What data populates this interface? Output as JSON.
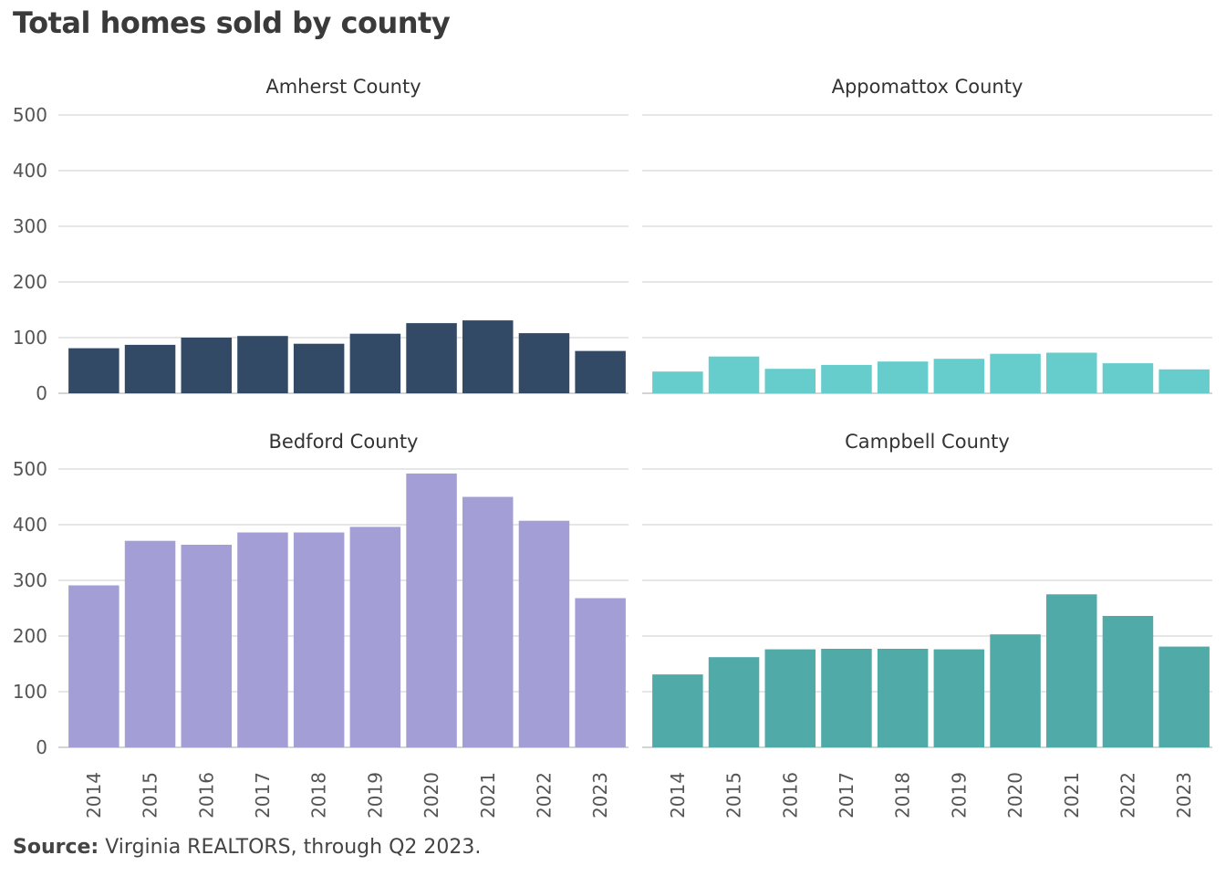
{
  "title": "Total homes sold by county",
  "source": {
    "label": "Source:",
    "text": "Virginia REALTORS,  through  Q2 2023."
  },
  "chart_data": [
    {
      "type": "bar",
      "title": "Amherst County",
      "color": "#334a66",
      "categories": [
        "2014",
        "2015",
        "2016",
        "2017",
        "2018",
        "2019",
        "2020",
        "2021",
        "2022",
        "2023"
      ],
      "values": [
        81,
        87,
        100,
        103,
        89,
        107,
        126,
        131,
        108,
        76
      ],
      "ylim": [
        0,
        500
      ],
      "yticks": [
        0,
        100,
        200,
        300,
        400,
        500
      ],
      "grid": true
    },
    {
      "type": "bar",
      "title": "Appomattox County",
      "color": "#66cccc",
      "categories": [
        "2014",
        "2015",
        "2016",
        "2017",
        "2018",
        "2019",
        "2020",
        "2021",
        "2022",
        "2023"
      ],
      "values": [
        39,
        66,
        44,
        51,
        57,
        62,
        71,
        73,
        54,
        43
      ],
      "ylim": [
        0,
        500
      ],
      "yticks": [
        0,
        100,
        200,
        300,
        400,
        500
      ],
      "grid": true
    },
    {
      "type": "bar",
      "title": "Bedford County",
      "color": "#a39fd6",
      "categories": [
        "2014",
        "2015",
        "2016",
        "2017",
        "2018",
        "2019",
        "2020",
        "2021",
        "2022",
        "2023"
      ],
      "values": [
        291,
        371,
        364,
        386,
        386,
        396,
        492,
        450,
        407,
        268
      ],
      "ylim": [
        0,
        500
      ],
      "yticks": [
        0,
        100,
        200,
        300,
        400,
        500
      ],
      "grid": true
    },
    {
      "type": "bar",
      "title": "Campbell County",
      "color": "#4faaa8",
      "categories": [
        "2014",
        "2015",
        "2016",
        "2017",
        "2018",
        "2019",
        "2020",
        "2021",
        "2022",
        "2023"
      ],
      "values": [
        131,
        162,
        176,
        177,
        177,
        176,
        203,
        275,
        236,
        181
      ],
      "ylim": [
        0,
        500
      ],
      "yticks": [
        0,
        100,
        200,
        300,
        400,
        500
      ],
      "grid": true
    }
  ]
}
